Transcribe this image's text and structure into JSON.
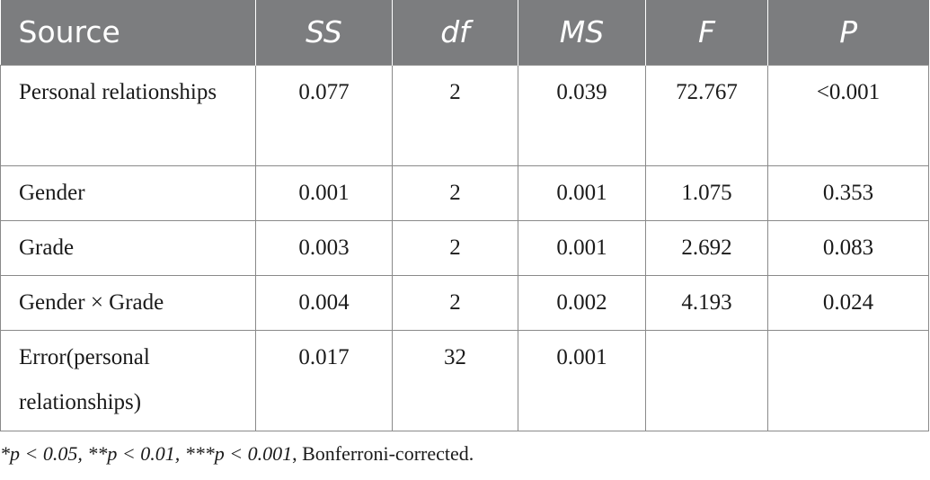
{
  "table": {
    "headers": [
      "Source",
      "SS",
      "df",
      "MS",
      "F",
      "P"
    ],
    "rows": [
      {
        "source": "Personal relationships",
        "ss": "0.077",
        "df": "2",
        "ms": "0.039",
        "f": "72.767",
        "p": "<0.001"
      },
      {
        "source": "Gender",
        "ss": "0.001",
        "df": "2",
        "ms": "0.001",
        "f": "1.075",
        "p": "0.353"
      },
      {
        "source": "Grade",
        "ss": "0.003",
        "df": "2",
        "ms": "0.001",
        "f": "2.692",
        "p": "0.083"
      },
      {
        "source": "Gender × Grade",
        "ss": "0.004",
        "df": "2",
        "ms": "0.002",
        "f": "4.193",
        "p": "0.024"
      },
      {
        "source": "Error(personal relationships)",
        "ss": "0.017",
        "df": "32",
        "ms": "0.001",
        "f": "",
        "p": ""
      }
    ]
  },
  "footnote": {
    "sig1": "*p < 0.05,",
    "sig2": "**p < 0.01,",
    "sig3": "***p < 0.001",
    "suffix": ", Bonferroni-corrected."
  },
  "colors": {
    "header_bg": "#7c7d7f",
    "header_text": "#ffffff",
    "border": "#8a8a8a"
  }
}
